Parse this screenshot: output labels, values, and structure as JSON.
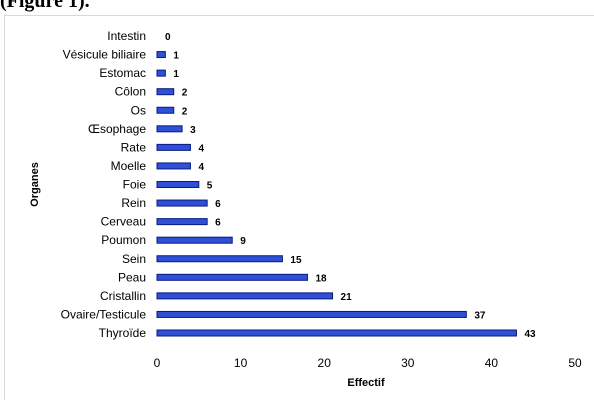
{
  "caption": "(Figure 1).",
  "chart_data": {
    "type": "bar",
    "orientation": "horizontal",
    "categories": [
      "Intestin",
      "Vésicule biliaire",
      "Estomac",
      "Côlon",
      "Os",
      "Œsophage",
      "Rate",
      "Moelle",
      "Foie",
      "Rein",
      "Cerveau",
      "Poumon",
      "Sein",
      "Peau",
      "Cristallin",
      "Ovaire/Testicule",
      "Thyroïde"
    ],
    "values": [
      0,
      1,
      1,
      2,
      2,
      3,
      4,
      4,
      5,
      6,
      6,
      9,
      15,
      18,
      21,
      37,
      43
    ],
    "xlabel": "Effectif",
    "ylabel": "Organes",
    "xlim": [
      0,
      50
    ],
    "xticks": [
      "0",
      "10",
      "20",
      "30",
      "40",
      "50"
    ],
    "grid": false,
    "legend": "none",
    "colors": {
      "bar_fill": "#2e4fd6",
      "bar_stroke": "#0b1a80"
    }
  }
}
